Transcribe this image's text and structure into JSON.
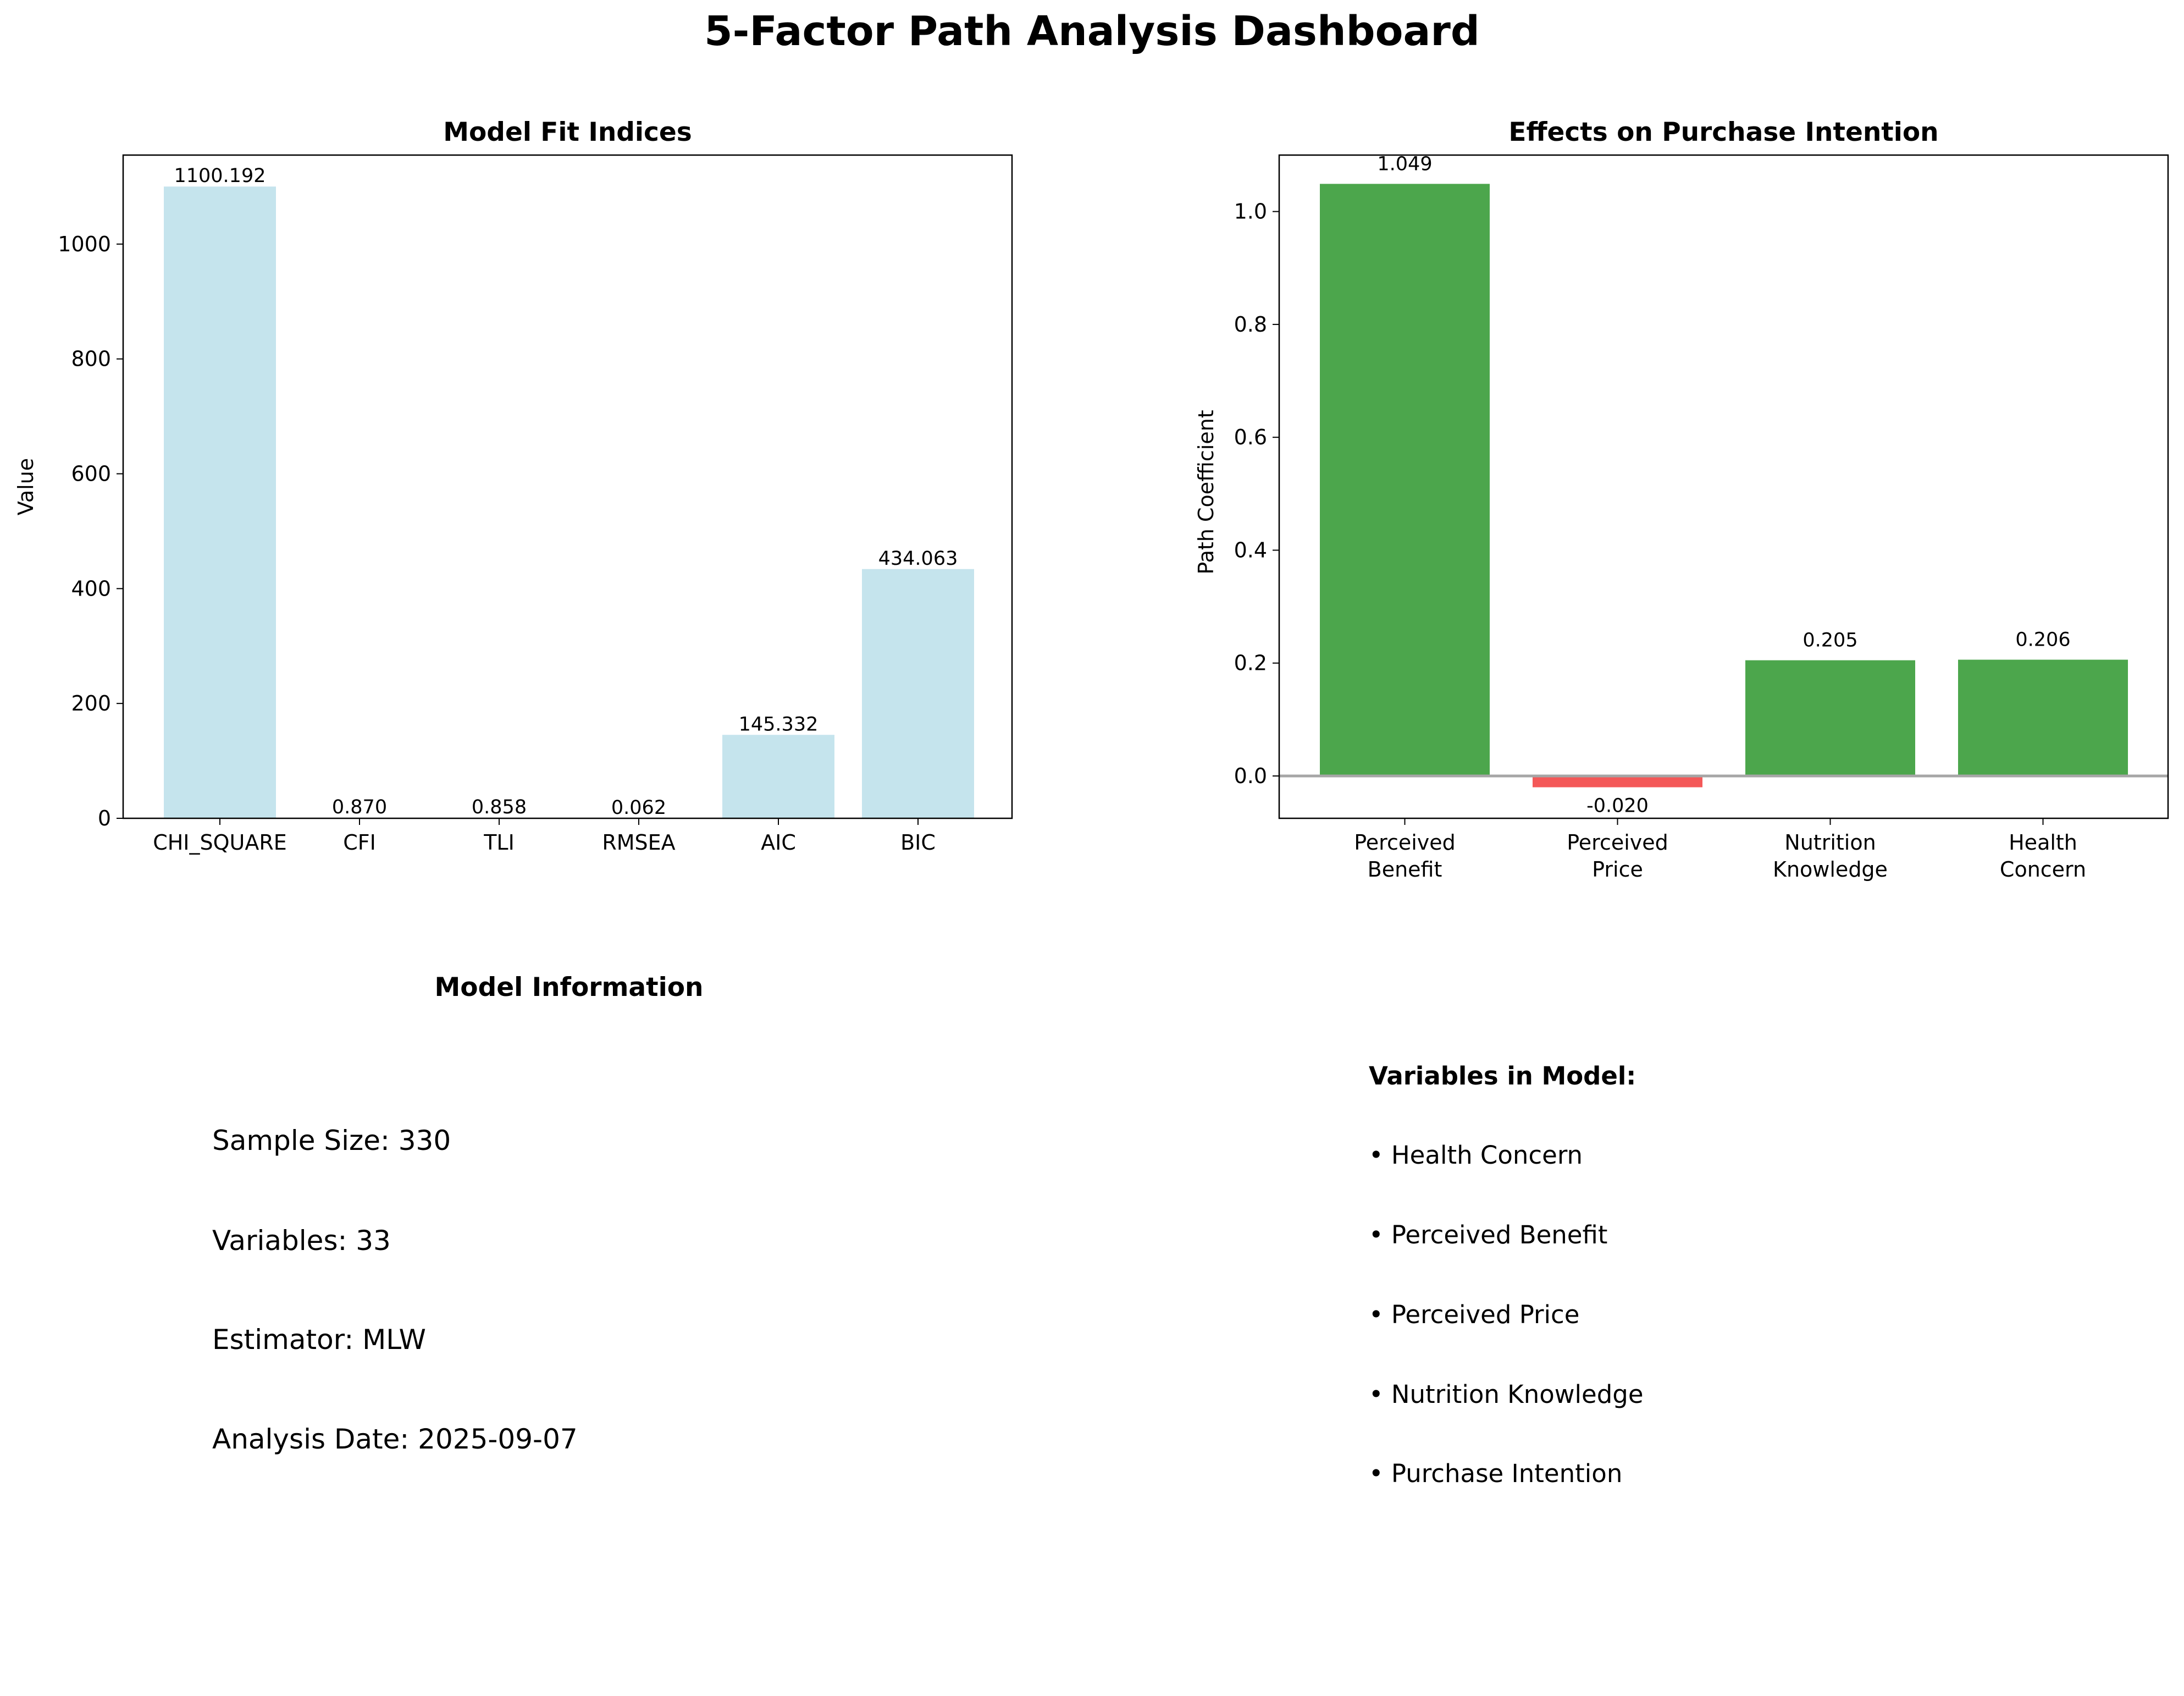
{
  "title": "5-Factor Path Analysis Dashboard",
  "chart_data": [
    {
      "type": "bar",
      "title": "Model Fit Indices",
      "ylabel": "Value",
      "xlabel": "",
      "categories": [
        "CHI_SQUARE",
        "CFI",
        "TLI",
        "RMSEA",
        "AIC",
        "BIC"
      ],
      "values": [
        1100.192,
        0.87,
        0.858,
        0.062,
        145.332,
        434.063
      ],
      "labels": [
        "1100.192",
        "0.870",
        "0.858",
        "0.062",
        "145.332",
        "434.063"
      ],
      "ylim": [
        0,
        1155
      ],
      "yticks": [
        0,
        200,
        400,
        600,
        800,
        1000
      ],
      "colors": {
        "bar": "#add8e6"
      }
    },
    {
      "type": "bar",
      "title": "Effects on Purchase Intention",
      "ylabel": "Path Coefficient",
      "xlabel": "",
      "categories": [
        [
          "Perceived",
          "Benefit"
        ],
        [
          "Perceived",
          "Price"
        ],
        [
          "Nutrition",
          "Knowledge"
        ],
        [
          "Health",
          "Concern"
        ]
      ],
      "values": [
        1.049,
        -0.02,
        0.205,
        0.206
      ],
      "labels": [
        "1.049",
        "-0.020",
        "0.205",
        "0.206"
      ],
      "ylim": [
        -0.075,
        1.1
      ],
      "yticks": [
        "0.0",
        "0.2",
        "0.4",
        "0.6",
        "0.8",
        "1.0"
      ],
      "colors": {
        "positive": "#4ca64c",
        "negative": "#f45858",
        "zero_line": "#a6a6a6"
      }
    }
  ],
  "model_info": {
    "title": "Model Information",
    "lines": [
      "Sample Size: 330",
      "Variables: 33",
      "Estimator: MLW",
      "Analysis Date: 2025-09-07"
    ]
  },
  "variables": {
    "title": "Variables in Model:",
    "items": [
      "• Health Concern",
      "• Perceived Benefit",
      "• Perceived Price",
      "• Nutrition Knowledge",
      "• Purchase Intention"
    ]
  }
}
